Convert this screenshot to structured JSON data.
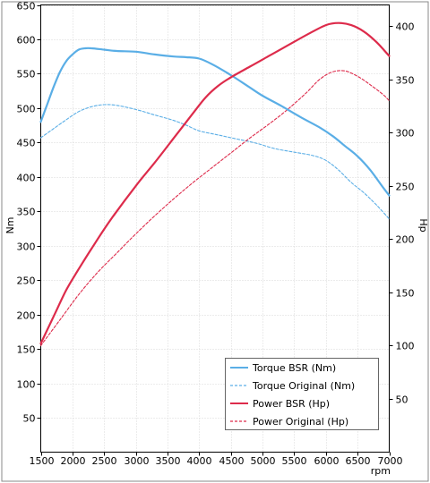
{
  "chart_data": {
    "type": "line",
    "xlabel": "rpm",
    "ylabel_left": "Nm",
    "ylabel_right": "Hp",
    "xlim": [
      1500,
      7000
    ],
    "ylim_left": [
      0,
      650
    ],
    "ylim_right": [
      0,
      420
    ],
    "x_ticks": [
      1500,
      2000,
      2500,
      3000,
      3500,
      4000,
      4500,
      5000,
      5500,
      6000,
      6500,
      7000
    ],
    "y_left_ticks": [
      50,
      100,
      150,
      200,
      250,
      300,
      350,
      400,
      450,
      500,
      550,
      600,
      650
    ],
    "y_right_ticks": [
      50,
      100,
      150,
      200,
      250,
      300,
      350,
      400
    ],
    "grid": true,
    "legend_position": "bottom-right",
    "series": [
      {
        "name": "Torque BSR (Nm)",
        "axis": "left",
        "color": "#5aaee6",
        "style": "solid",
        "x": [
          1500,
          1600,
          1700,
          1800,
          1900,
          2000,
          2100,
          2200,
          2300,
          2500,
          2700,
          3000,
          3300,
          3600,
          3800,
          4000,
          4200,
          4500,
          4800,
          5000,
          5300,
          5600,
          5900,
          6100,
          6300,
          6500,
          6700,
          6900,
          7000
        ],
        "y": [
          480,
          505,
          530,
          552,
          568,
          578,
          585,
          587,
          587,
          585,
          583,
          582,
          578,
          575,
          574,
          572,
          564,
          548,
          530,
          518,
          503,
          487,
          472,
          460,
          445,
          430,
          410,
          385,
          373
        ]
      },
      {
        "name": "Torque Original (Nm)",
        "axis": "left",
        "color": "#5aaee6",
        "style": "dashed",
        "x": [
          1500,
          1700,
          1900,
          2100,
          2300,
          2500,
          2700,
          3000,
          3300,
          3600,
          3800,
          4000,
          4300,
          4600,
          4900,
          5200,
          5500,
          5800,
          6000,
          6200,
          6400,
          6600,
          6800,
          7000
        ],
        "y": [
          457,
          470,
          483,
          495,
          502,
          505,
          504,
          498,
          490,
          482,
          475,
          467,
          461,
          455,
          449,
          441,
          436,
          431,
          424,
          410,
          392,
          377,
          359,
          339
        ]
      },
      {
        "name": "Power BSR (Hp)",
        "axis": "right",
        "color": "#dd2b4b",
        "style": "solid",
        "x": [
          1500,
          1700,
          1900,
          2100,
          2300,
          2600,
          3000,
          3300,
          3600,
          3900,
          4100,
          4300,
          4500,
          4800,
          5100,
          5400,
          5700,
          6000,
          6200,
          6400,
          6600,
          6800,
          7000
        ],
        "y": [
          102,
          127,
          152,
          172,
          191,
          218,
          250,
          272,
          295,
          318,
          333,
          344,
          352,
          362,
          372,
          382,
          392,
          401,
          403,
          401,
          395,
          385,
          372
        ]
      },
      {
        "name": "Power Original (Hp)",
        "axis": "right",
        "color": "#dd2b4b",
        "style": "dashed",
        "x": [
          1500,
          1800,
          2100,
          2400,
          2700,
          3000,
          3300,
          3600,
          3900,
          4200,
          4500,
          4800,
          5100,
          5400,
          5700,
          5900,
          6100,
          6300,
          6500,
          6700,
          6900,
          7000
        ],
        "y": [
          100,
          124,
          148,
          169,
          187,
          205,
          222,
          238,
          253,
          267,
          281,
          295,
          308,
          322,
          338,
          350,
          357,
          358,
          353,
          345,
          336,
          330
        ]
      }
    ]
  }
}
